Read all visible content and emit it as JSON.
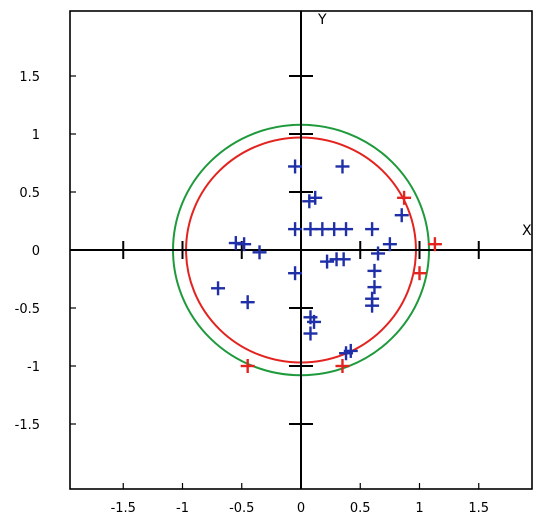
{
  "chart_data": {
    "type": "scatter",
    "title": "",
    "xlabel": "X",
    "ylabel": "Y",
    "xlim": [
      -2,
      2
    ],
    "ylim": [
      -2,
      2
    ],
    "ticks": [
      -1.5,
      -1,
      -0.5,
      0,
      0.5,
      1,
      1.5
    ],
    "tick_labels": [
      "-1.5",
      "-1",
      "-0.5",
      "0",
      "0.5",
      "1",
      "1.5"
    ],
    "colors": {
      "blue": "#1f2fa8",
      "red": "#e3231f",
      "green": "#1e9a3c"
    },
    "circles": [
      {
        "center": [
          0,
          0
        ],
        "radius": 1.08,
        "color": "#1e9a3c"
      },
      {
        "center": [
          0,
          0
        ],
        "radius": 0.97,
        "color": "#e3231f"
      }
    ],
    "series": [
      {
        "color": "#1f2fa8",
        "points": [
          [
            -0.05,
            0.72
          ],
          [
            0.35,
            0.72
          ],
          [
            0.12,
            0.45
          ],
          [
            0.07,
            0.42
          ],
          [
            -0.05,
            0.18
          ],
          [
            0.08,
            0.18
          ],
          [
            0.18,
            0.18
          ],
          [
            0.28,
            0.18
          ],
          [
            0.38,
            0.18
          ],
          [
            0.6,
            0.18
          ],
          [
            0.85,
            0.3
          ],
          [
            -0.55,
            0.06
          ],
          [
            -0.48,
            0.05
          ],
          [
            -0.35,
            -0.02
          ],
          [
            0.75,
            0.05
          ],
          [
            0.65,
            -0.03
          ],
          [
            0.22,
            -0.1
          ],
          [
            0.3,
            -0.08
          ],
          [
            0.36,
            -0.08
          ],
          [
            -0.05,
            -0.2
          ],
          [
            0.62,
            -0.18
          ],
          [
            0.62,
            -0.32
          ],
          [
            0.6,
            -0.42
          ],
          [
            0.6,
            -0.48
          ],
          [
            -0.7,
            -0.33
          ],
          [
            -0.45,
            -0.45
          ],
          [
            0.08,
            -0.58
          ],
          [
            0.11,
            -0.62
          ],
          [
            0.08,
            -0.72
          ],
          [
            0.42,
            -0.87
          ],
          [
            0.38,
            -0.89
          ]
        ]
      },
      {
        "color": "#e3231f",
        "points": [
          [
            0.87,
            0.45
          ],
          [
            1.13,
            0.05
          ],
          [
            1.0,
            -0.2
          ],
          [
            -0.45,
            -1.0
          ],
          [
            0.35,
            -1.0
          ]
        ]
      }
    ]
  }
}
